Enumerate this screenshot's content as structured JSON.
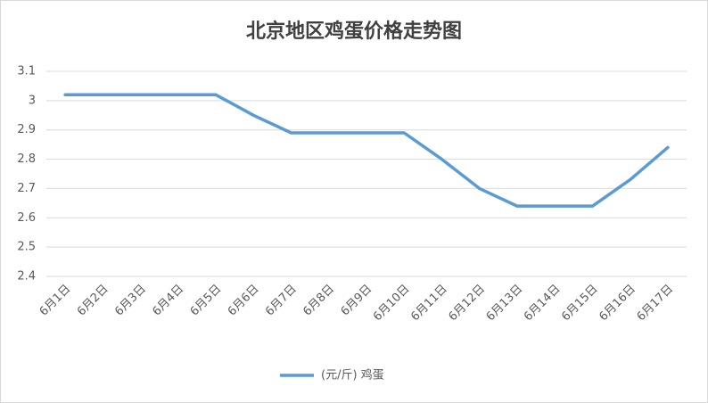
{
  "chart_data": {
    "type": "line",
    "title": "北京地区鸡蛋价格走势图",
    "categories": [
      "6月1日",
      "6月2日",
      "6月3日",
      "6月4日",
      "6月5日",
      "6月6日",
      "6月7日",
      "6月8日",
      "6月9日",
      "6月10日",
      "6月11日",
      "6月12日",
      "6月13日",
      "6月14日",
      "6月15日",
      "6月16日",
      "6月17日"
    ],
    "series": [
      {
        "name": "(元/斤) 鸡蛋",
        "color": "#5b9bd5",
        "values": [
          3.02,
          3.02,
          3.02,
          3.02,
          3.02,
          2.95,
          2.89,
          2.89,
          2.89,
          2.89,
          2.8,
          2.7,
          2.64,
          2.64,
          2.64,
          2.73,
          2.84
        ]
      }
    ],
    "ylim": [
      2.4,
      3.1
    ],
    "yticks": [
      2.4,
      2.5,
      2.6,
      2.7,
      2.8,
      2.9,
      3,
      3.1
    ],
    "grid": true,
    "legend": "bottom"
  }
}
